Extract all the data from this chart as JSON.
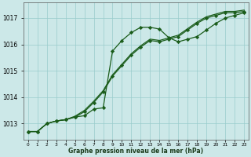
{
  "title": "Graphe pression niveau de la mer (hPa)",
  "background_color": "#cce8e8",
  "grid_color": "#99cccc",
  "line_color": "#1a5c1a",
  "ylim": [
    1012.4,
    1017.6
  ],
  "yticks": [
    1013,
    1014,
    1015,
    1016,
    1017
  ],
  "xlim": [
    -0.5,
    23.5
  ],
  "x_labels": [
    "0",
    "1",
    "2",
    "3",
    "4",
    "5",
    "6",
    "7",
    "8",
    "9",
    "10",
    "11",
    "12",
    "13",
    "14",
    "15",
    "16",
    "17",
    "18",
    "19",
    "20",
    "21",
    "22",
    "23"
  ],
  "series1_x": [
    0,
    1,
    2,
    3,
    4,
    5,
    6,
    7,
    8,
    9,
    10,
    11,
    12,
    13,
    14,
    15,
    16,
    17,
    18,
    19,
    20,
    21,
    22,
    23
  ],
  "series1_y": [
    1012.7,
    1012.7,
    1013.0,
    1013.1,
    1013.15,
    1013.25,
    1013.3,
    1013.55,
    1013.6,
    1015.75,
    1016.15,
    1016.45,
    1016.65,
    1016.65,
    1016.58,
    1016.25,
    1016.1,
    1016.2,
    1016.3,
    1016.55,
    1016.8,
    1017.0,
    1017.1,
    1017.2
  ],
  "series2_x": [
    0,
    1,
    2,
    3,
    4,
    5,
    6,
    7,
    8,
    9,
    10,
    11,
    12,
    13,
    14,
    15,
    16,
    17,
    18,
    19,
    20,
    21,
    22,
    23
  ],
  "series2_y": [
    1012.7,
    1012.7,
    1013.0,
    1013.1,
    1013.15,
    1013.25,
    1013.45,
    1013.8,
    1014.2,
    1014.8,
    1015.2,
    1015.6,
    1015.9,
    1016.15,
    1016.1,
    1016.2,
    1016.3,
    1016.55,
    1016.8,
    1017.0,
    1017.1,
    1017.2,
    1017.2,
    1017.25
  ],
  "series3_x": [
    0,
    1,
    2,
    3,
    4,
    5,
    6,
    7,
    8,
    9,
    10,
    11,
    12,
    13,
    14,
    15,
    16,
    17,
    18,
    19,
    20,
    21,
    22,
    23
  ],
  "series3_y": [
    1012.7,
    1012.7,
    1013.0,
    1013.1,
    1013.15,
    1013.28,
    1013.5,
    1013.85,
    1014.25,
    1014.85,
    1015.25,
    1015.65,
    1015.95,
    1016.2,
    1016.15,
    1016.25,
    1016.35,
    1016.6,
    1016.85,
    1017.05,
    1017.15,
    1017.25,
    1017.25,
    1017.3
  ],
  "marker_style": "D",
  "marker_size": 2.2,
  "linewidth": 0.9,
  "xlabel_fontsize": 5.5,
  "ytick_fontsize": 5.5,
  "xtick_fontsize": 4.2
}
